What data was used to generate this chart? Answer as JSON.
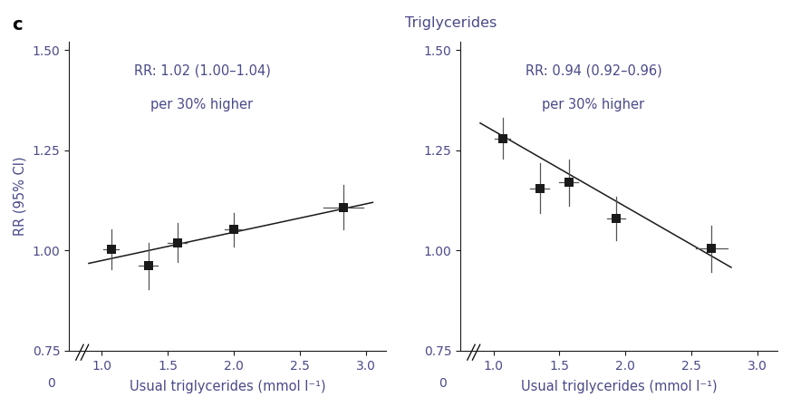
{
  "title": "Triglycerides",
  "panel_label": "c",
  "xlabel": "Usual triglycerides (mmol l⁻¹)",
  "ylabel": "RR (95% CI)",
  "ylim": [
    0.75,
    1.52
  ],
  "yticks": [
    0.75,
    1.0,
    1.25,
    1.5
  ],
  "ytick_labels": [
    "0.75",
    "1.00",
    "1.25",
    "1.50"
  ],
  "xlim": [
    0.75,
    3.15
  ],
  "xticks": [
    1.0,
    1.5,
    2.0,
    2.5,
    3.0
  ],
  "xtick_labels": [
    "1.0",
    "1.5",
    "2.0",
    "2.5",
    "3.0"
  ],
  "left_panel": {
    "annotation_line1": "RR: 1.02 (1.00–1.04)",
    "annotation_line2": "per 30% higher",
    "x": [
      1.07,
      1.35,
      1.57,
      2.0,
      2.83
    ],
    "y": [
      1.003,
      0.962,
      1.02,
      1.052,
      1.108
    ],
    "yerr_lo": [
      0.05,
      0.058,
      0.048,
      0.042,
      0.055
    ],
    "yerr_hi": [
      0.05,
      0.058,
      0.048,
      0.042,
      0.055
    ],
    "xerr_lo": [
      0.06,
      0.07,
      0.07,
      0.07,
      0.15
    ],
    "xerr_hi": [
      0.06,
      0.07,
      0.07,
      0.07,
      0.15
    ],
    "trend_x": [
      0.9,
      3.05
    ],
    "trend_y": [
      0.968,
      1.12
    ]
  },
  "right_panel": {
    "annotation_line1": "RR: 0.94 (0.92–0.96)",
    "annotation_line2": "per 30% higher",
    "x": [
      1.07,
      1.35,
      1.57,
      1.93,
      2.65
    ],
    "y": [
      1.28,
      1.155,
      1.17,
      1.08,
      1.005
    ],
    "yerr_lo": [
      0.05,
      0.062,
      0.058,
      0.055,
      0.058
    ],
    "yerr_hi": [
      0.05,
      0.062,
      0.058,
      0.055,
      0.058
    ],
    "xerr_lo": [
      0.06,
      0.07,
      0.07,
      0.07,
      0.12
    ],
    "xerr_hi": [
      0.06,
      0.07,
      0.07,
      0.07,
      0.12
    ],
    "trend_x": [
      0.9,
      2.8
    ],
    "trend_y": [
      1.318,
      0.958
    ]
  },
  "text_color": "#4a4a8a",
  "marker_color": "#1a1a1a",
  "line_color": "#1a1a1a",
  "errorbar_color": "#555555",
  "background_color": "#ffffff",
  "spine_color": "#1a1a1a",
  "tick_color": "#1a1a1a",
  "marker_size": 7,
  "line_width": 1.1,
  "errorbar_linewidth": 0.9,
  "font_size_annotation": 10.5,
  "font_size_label": 10.5,
  "font_size_title": 11.5,
  "font_size_tick": 10,
  "font_size_panel": 14
}
